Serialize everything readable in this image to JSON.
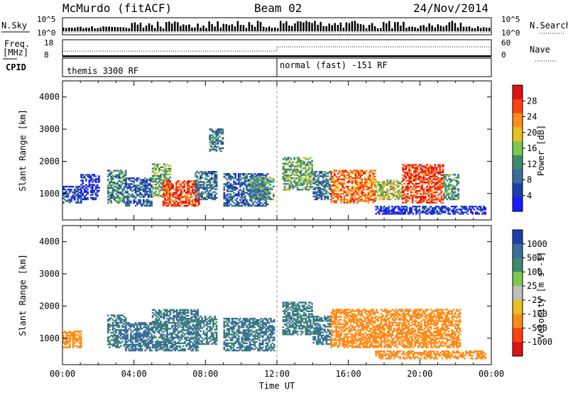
{
  "header": {
    "station": "McMurdo (fitACF)",
    "beam": "Beam 02",
    "date": "24/Nov/2014"
  },
  "top_panels": {
    "nsky_label": "N.Sky",
    "nsky_ticks": [
      "10^5",
      "10^0"
    ],
    "nsearch_label": "N.Search",
    "nsearch_ticks": [
      "10^5",
      "10^0"
    ],
    "freq_label_1": "Freq.",
    "freq_label_2": "[MHz]",
    "freq_ticks": [
      "18",
      "8"
    ],
    "nave_label": "Nave",
    "nave_ticks": [
      "60",
      "0"
    ],
    "cpid_label": "CPID",
    "cpid_segments": [
      "themis 3300 RF",
      "normal (fast) -151 RF"
    ]
  },
  "colors": {
    "power_scale": [
      "#1a1aff",
      "#1f3fa8",
      "#3a6e9a",
      "#3e8a6c",
      "#7ec850",
      "#e8c020",
      "#ff8c1a",
      "#ff4010",
      "#e01010"
    ],
    "velocity_scale": [
      "#1f3fa8",
      "#3a6e9a",
      "#3e8a6c",
      "#7ec850",
      "#bfbfbf",
      "#e8c020",
      "#ff8c1a",
      "#ff4010",
      "#e01010"
    ],
    "ground_scatter": "#bfbfbf"
  },
  "chart_data": [
    {
      "type": "heatmap",
      "panel": "power",
      "ylabel": "Slant Range [km]",
      "colorbar_label": "Power [dB]",
      "colorbar_ticks": [
        "28",
        "24",
        "20",
        "16",
        "12",
        "8",
        "4"
      ],
      "xlim_hours": [
        0,
        24
      ],
      "ylim_km": [
        180,
        4500
      ],
      "ytick_values": [
        1000,
        2000,
        3000,
        4000
      ],
      "ytick_labels": [
        "1000",
        "2000",
        "3000",
        "4000"
      ],
      "scatter_regions": [
        {
          "t0": 0.0,
          "t1": 1.0,
          "r0": 700,
          "r1": 1200,
          "level": 0.2
        },
        {
          "t0": 1.0,
          "t1": 2.0,
          "r0": 800,
          "r1": 1600,
          "level": 0.1
        },
        {
          "t0": 2.5,
          "t1": 3.5,
          "r0": 700,
          "r1": 1700,
          "level": 0.35
        },
        {
          "t0": 3.5,
          "t1": 5.0,
          "r0": 600,
          "r1": 1500,
          "level": 0.25
        },
        {
          "t0": 5.0,
          "t1": 6.0,
          "r0": 900,
          "r1": 1900,
          "level": 0.45
        },
        {
          "t0": 5.6,
          "t1": 7.6,
          "r0": 600,
          "r1": 1400,
          "level": 0.85
        },
        {
          "t0": 7.4,
          "t1": 8.6,
          "r0": 800,
          "r1": 1700,
          "level": 0.3
        },
        {
          "t0": 8.2,
          "t1": 9.0,
          "r0": 2300,
          "r1": 3000,
          "level": 0.3
        },
        {
          "t0": 9.0,
          "t1": 11.5,
          "r0": 600,
          "r1": 1600,
          "level": 0.25
        },
        {
          "t0": 10.5,
          "t1": 11.8,
          "r0": 800,
          "r1": 1500,
          "level": 0.4
        },
        {
          "t0": 12.3,
          "t1": 14.0,
          "r0": 1100,
          "r1": 2100,
          "level": 0.45
        },
        {
          "t0": 14.0,
          "t1": 15.0,
          "r0": 800,
          "r1": 1700,
          "level": 0.3
        },
        {
          "t0": 15.0,
          "t1": 17.5,
          "r0": 700,
          "r1": 1700,
          "level": 0.75
        },
        {
          "t0": 17.5,
          "t1": 19.0,
          "r0": 800,
          "r1": 1400,
          "level": 0.55
        },
        {
          "t0": 19.0,
          "t1": 21.3,
          "r0": 700,
          "r1": 1900,
          "level": 0.85
        },
        {
          "t0": 21.3,
          "t1": 22.2,
          "r0": 800,
          "r1": 1600,
          "level": 0.4
        },
        {
          "t0": 17.5,
          "t1": 23.7,
          "r0": 350,
          "r1": 600,
          "level": 0.15
        }
      ]
    },
    {
      "type": "heatmap",
      "panel": "velocity",
      "ylabel": "Slant Range [km]",
      "colorbar_label": "Velocity [m s^-1]",
      "colorbar_ticks": [
        "1000",
        "500",
        "100",
        "25",
        "-25",
        "-100",
        "-500",
        "-1000"
      ],
      "xlabel": "Time UT",
      "xlim_hours": [
        0,
        24
      ],
      "xtick_labels": [
        "00:00",
        "04:00",
        "08:00",
        "12:00",
        "16:00",
        "20:00",
        "00:00"
      ],
      "ylim_km": [
        180,
        4500
      ],
      "ytick_values": [
        1000,
        2000,
        3000,
        4000
      ],
      "ytick_labels": [
        "1000",
        "2000",
        "3000",
        "4000"
      ],
      "scatter_regions": [
        {
          "t0": 0.0,
          "t1": 1.0,
          "r0": 700,
          "r1": 1200,
          "velocity": -200
        },
        {
          "t0": 2.5,
          "t1": 3.5,
          "r0": 700,
          "r1": 1700,
          "velocity": 300
        },
        {
          "t0": 3.5,
          "t1": 5.0,
          "r0": 600,
          "r1": 1500,
          "velocity": 400
        },
        {
          "t0": 5.0,
          "t1": 7.6,
          "r0": 600,
          "r1": 1900,
          "velocity": 350
        },
        {
          "t0": 7.4,
          "t1": 8.6,
          "r0": 800,
          "r1": 1700,
          "velocity": 300
        },
        {
          "t0": 9.0,
          "t1": 11.8,
          "r0": 600,
          "r1": 1600,
          "velocity": 350
        },
        {
          "t0": 12.3,
          "t1": 14.0,
          "r0": 1100,
          "r1": 2100,
          "velocity": 300
        },
        {
          "t0": 14.0,
          "t1": 15.0,
          "r0": 800,
          "r1": 1700,
          "velocity": 350
        },
        {
          "t0": 15.0,
          "t1": 22.2,
          "r0": 700,
          "r1": 1900,
          "velocity": -300
        },
        {
          "t0": 17.5,
          "t1": 23.7,
          "r0": 350,
          "r1": 600,
          "velocity": -250
        }
      ]
    }
  ]
}
